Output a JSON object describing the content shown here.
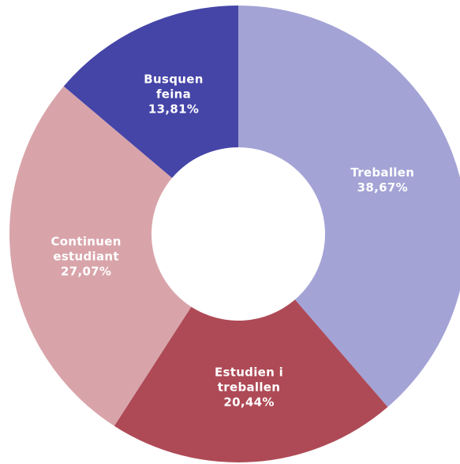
{
  "chart_data": {
    "type": "donut",
    "categories": [
      "Treballen",
      "Estudien i treballen",
      "Continuen estudiant",
      "Busquen feina"
    ],
    "values": [
      38.67,
      20.44,
      27.07,
      13.81
    ],
    "value_labels": [
      "38,67%",
      "20,44%",
      "27,07%",
      "13,81%"
    ],
    "colors": [
      "#a3a3d6",
      "#ae4a56",
      "#d8a4aa",
      "#4545a8"
    ]
  }
}
